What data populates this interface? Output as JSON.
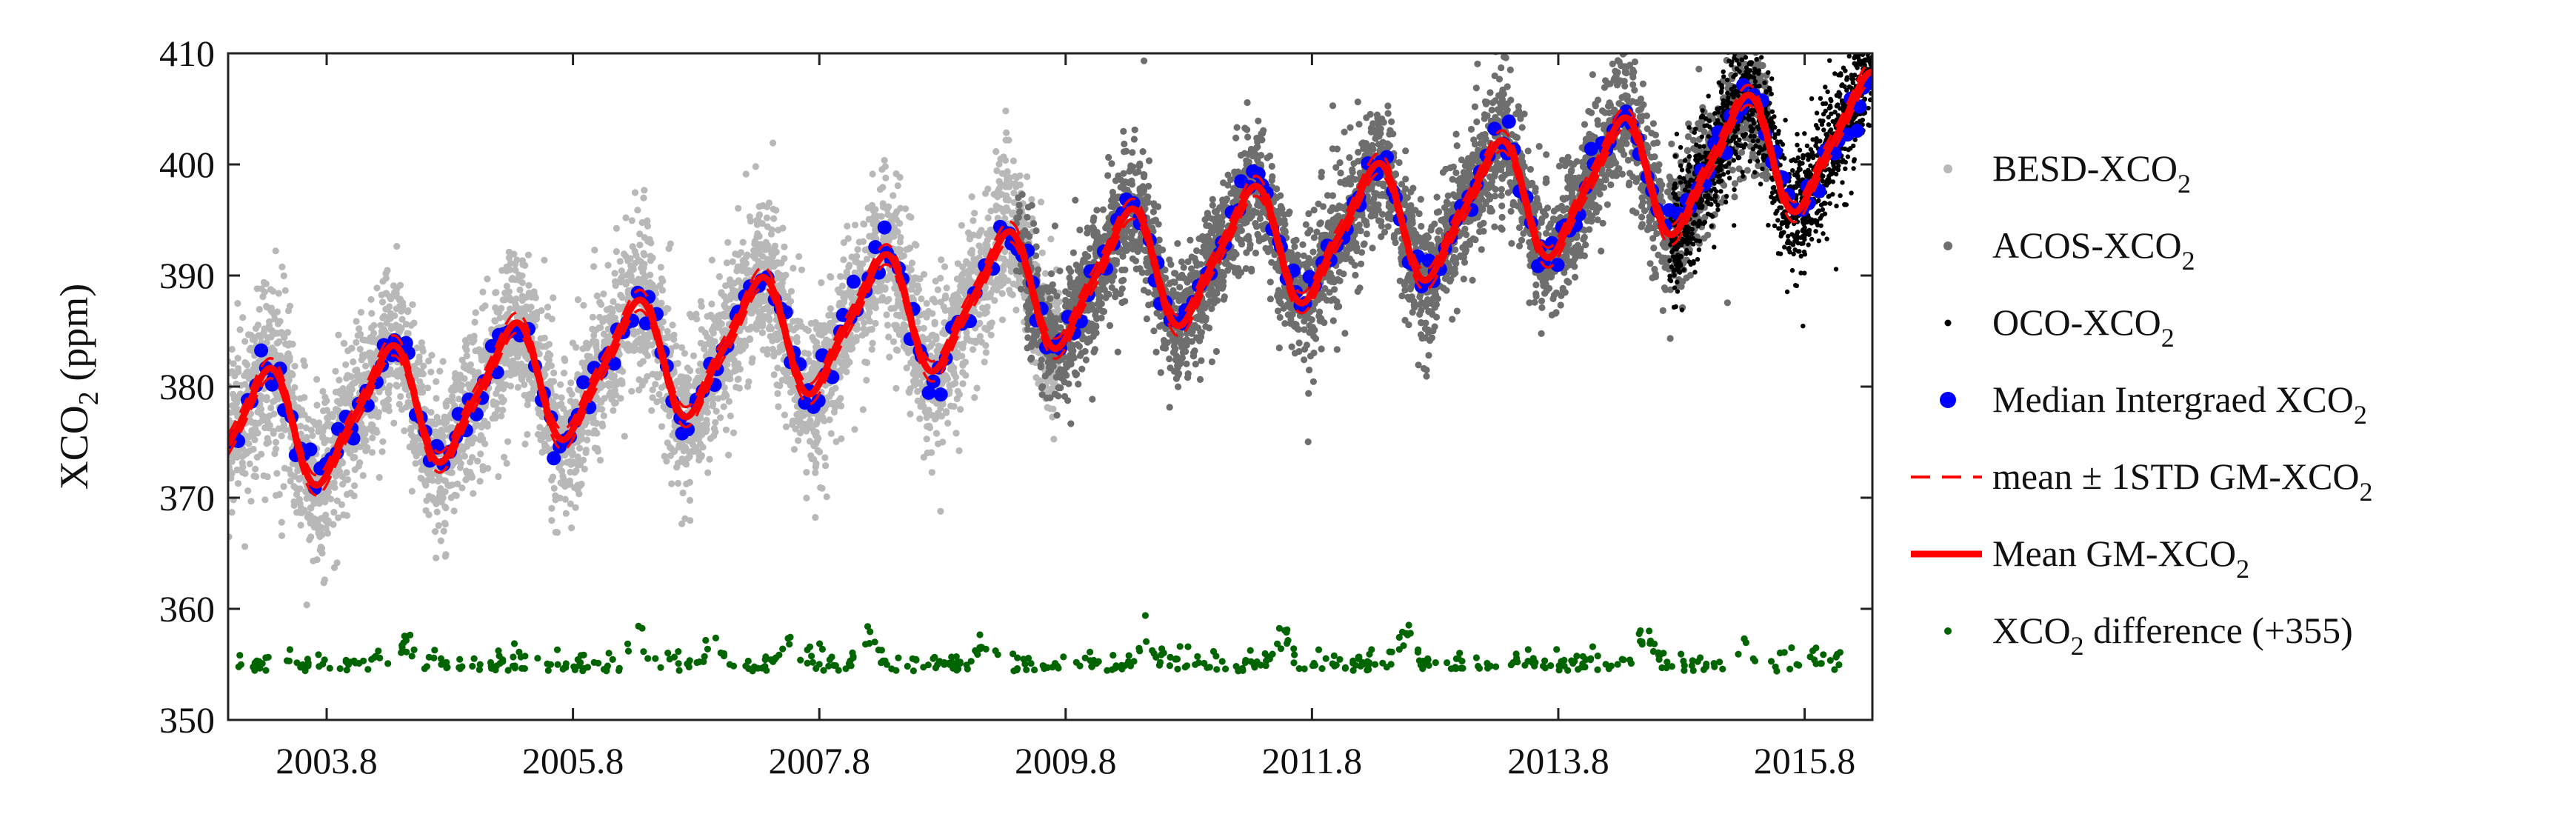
{
  "chart_data": {
    "type": "scatter",
    "title": "",
    "xlabel": "",
    "ylabel": "XCO",
    "ylabel_subscript": "2",
    "ylabel_suffix": " (ppm)",
    "xlim": [
      2003.0,
      2016.35
    ],
    "ylim": [
      350,
      410
    ],
    "yticks": [
      350,
      360,
      370,
      380,
      390,
      400,
      410
    ],
    "xticks": [
      {
        "value": 2003.8,
        "label": "2003.8"
      },
      {
        "value": 2005.8,
        "label": "2005.8"
      },
      {
        "value": 2007.8,
        "label": "2007.8"
      },
      {
        "value": 2009.8,
        "label": "2009.8"
      },
      {
        "value": 2011.8,
        "label": "2011.8"
      },
      {
        "value": 2013.8,
        "label": "2013.8"
      },
      {
        "value": 2015.8,
        "label": "2015.8"
      }
    ],
    "grid": false,
    "legend_position": "right",
    "model": {
      "base": 375.3,
      "slope": 2.05,
      "base_year": 2003.0,
      "seasonal_amplitude": 5.2,
      "peak_phase": 0.28,
      "median_amplitude_boost": 1.0
    },
    "series": [
      {
        "name": "BESD-XCO",
        "sub": "2",
        "suffix": "",
        "kind": "dots",
        "color": "#b8b8b8",
        "x_range": [
          2003.0,
          2009.75
        ],
        "spread": 4.5,
        "count": 5200,
        "marker": "dot-small",
        "seed": 11
      },
      {
        "name": "ACOS-XCO",
        "sub": "2",
        "suffix": "",
        "kind": "dots",
        "color": "#6e6e6e",
        "x_range": [
          2009.4,
          2015.5
        ],
        "spread": 3.8,
        "count": 4400,
        "marker": "dot-small",
        "seed": 23
      },
      {
        "name": "OCO-XCO",
        "sub": "2",
        "suffix": "",
        "kind": "dots",
        "color": "#000000",
        "x_range": [
          2014.7,
          2016.35
        ],
        "spread": 3.6,
        "count": 1500,
        "marker": "dot-tiny",
        "seed": 37
      },
      {
        "name": "Median Intergraed XCO",
        "sub": "2",
        "suffix": "",
        "kind": "median",
        "color": "#0000ff",
        "x_range": [
          2003.0,
          2016.35
        ],
        "spread": 1.1,
        "count": 330,
        "marker": "dot-large",
        "seed": 41
      },
      {
        "name": "mean ± 1STD GM-XCO",
        "sub": "2",
        "suffix": "",
        "kind": "band",
        "color": "#ff0000",
        "offset": 0.9,
        "marker": "dash-line"
      },
      {
        "name": "Mean GM-XCO",
        "sub": "2",
        "suffix": "",
        "kind": "mean",
        "color": "#ff0000",
        "marker": "solid-line"
      },
      {
        "name": "XCO",
        "sub": "2",
        "suffix": " difference (+355)",
        "kind": "diff",
        "color": "#006400",
        "x_range": [
          2003.0,
          2016.1
        ],
        "base_value": 355,
        "count": 560,
        "marker": "dot-green",
        "seed": 53
      }
    ],
    "difference_peaks": [
      2004.45,
      2006.35,
      2006.95,
      2007.55,
      2008.2,
      2009.15,
      2010.45,
      2011.55,
      2012.55,
      2014.5,
      2015.3
    ]
  }
}
